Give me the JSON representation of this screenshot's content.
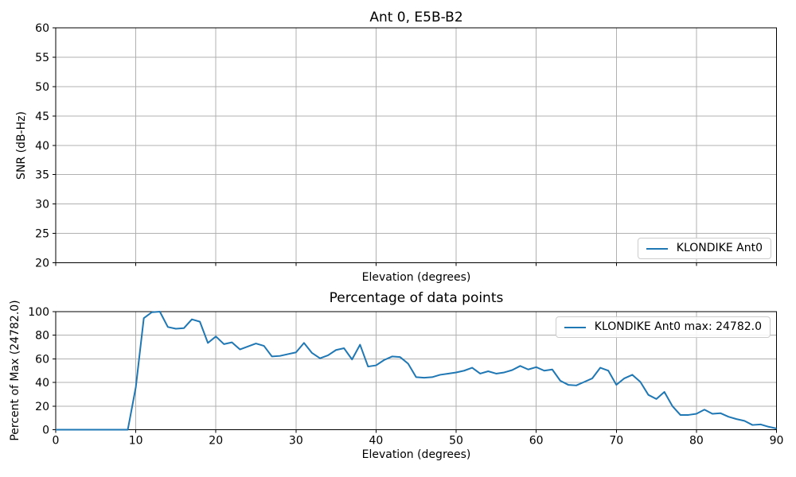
{
  "figure": {
    "background": "#ffffff"
  },
  "colors": {
    "line": "#1f77b4",
    "grid": "#b0b0b0",
    "spine": "#000000",
    "text": "#000000",
    "legend_border": "#cccccc"
  },
  "chart_data": [
    {
      "type": "line",
      "title": "Ant 0, E5B-B2",
      "xlabel": "Elevation (degrees)",
      "ylabel": "SNR (dB-Hz)",
      "xlim": [
        0,
        90
      ],
      "ylim": [
        20,
        60
      ],
      "xticks": [
        0,
        10,
        20,
        30,
        40,
        50,
        60,
        70,
        80,
        90
      ],
      "xtick_labels_visible": false,
      "yticks": [
        20,
        25,
        30,
        35,
        40,
        45,
        50,
        55,
        60
      ],
      "grid": true,
      "legend": {
        "label": "KLONDIKE Ant0",
        "location": "lower right"
      },
      "series": [
        {
          "name": "KLONDIKE Ant0",
          "x": [],
          "y": []
        }
      ]
    },
    {
      "type": "line",
      "title": "Percentage of data points",
      "xlabel": "Elevation (degrees)",
      "ylabel": "Percent of Max (24782.0)",
      "max_value": 24782.0,
      "xlim": [
        0,
        90
      ],
      "ylim": [
        0,
        100
      ],
      "xticks": [
        0,
        10,
        20,
        30,
        40,
        50,
        60,
        70,
        80,
        90
      ],
      "xtick_labels_visible": true,
      "yticks": [
        0,
        20,
        40,
        60,
        80,
        100
      ],
      "grid": true,
      "legend": {
        "label": "KLONDIKE Ant0 max: 24782.0",
        "location": "upper right"
      },
      "series": [
        {
          "name": "KLONDIKE Ant0",
          "x": [
            0,
            1,
            2,
            3,
            4,
            5,
            6,
            7,
            8,
            9,
            10,
            11,
            12,
            13,
            14,
            15,
            16,
            17,
            18,
            19,
            20,
            21,
            22,
            23,
            24,
            25,
            26,
            27,
            28,
            29,
            30,
            31,
            32,
            33,
            34,
            35,
            36,
            37,
            38,
            39,
            40,
            41,
            42,
            43,
            44,
            45,
            46,
            47,
            48,
            49,
            50,
            51,
            52,
            53,
            54,
            55,
            56,
            57,
            58,
            59,
            60,
            61,
            62,
            63,
            64,
            65,
            66,
            67,
            68,
            69,
            70,
            71,
            72,
            73,
            74,
            75,
            76,
            77,
            78,
            79,
            80,
            81,
            82,
            83,
            84,
            85,
            86,
            87,
            88,
            89,
            90
          ],
          "y": [
            0,
            0,
            0,
            0,
            0,
            0,
            0,
            0,
            0,
            0,
            36,
            94.5,
            99.5,
            100,
            87,
            85.5,
            86,
            93.5,
            91.5,
            73.5,
            79,
            72.5,
            74,
            68,
            70.5,
            73,
            71,
            62,
            62.5,
            64,
            65.5,
            73.5,
            65,
            60.5,
            63,
            67.5,
            69,
            59.5,
            72,
            53.5,
            54.5,
            59,
            62,
            61.5,
            56,
            44.5,
            44,
            44.5,
            46.5,
            47.5,
            48.5,
            50,
            52.5,
            47.5,
            49.5,
            47.5,
            48.5,
            50.5,
            54,
            51,
            53,
            50,
            51,
            41.5,
            38,
            37.5,
            40.5,
            43.5,
            52.5,
            50,
            38,
            43.5,
            46.5,
            40.5,
            29.5,
            26,
            32,
            20,
            12.5,
            12.5,
            13.5,
            17,
            13.5,
            14,
            11,
            9,
            7.5,
            4,
            4.5,
            2.5,
            1
          ]
        }
      ]
    }
  ]
}
